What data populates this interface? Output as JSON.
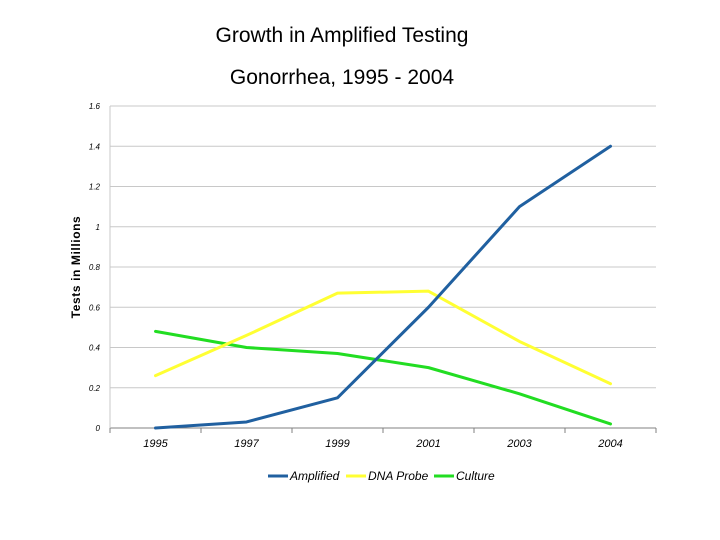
{
  "chart_data": {
    "type": "line",
    "title": "Growth in Amplified Testing",
    "subtitle": "Gonorrhea, 1995 - 2004",
    "ylabel": "Tests in Millions",
    "xlabel": "",
    "categories": [
      "1995",
      "1997",
      "1999",
      "2001",
      "2003",
      "2004"
    ],
    "y_ticks": [
      "0",
      "0.2",
      "0.4",
      "0.6",
      "0.8",
      "1",
      "1.2",
      "1.4",
      "1.6"
    ],
    "ylim": [
      0,
      1.6
    ],
    "grid": true,
    "legend_position": "bottom",
    "series": [
      {
        "name": "Amplified",
        "color": "#2060a0",
        "values": [
          0.0,
          0.03,
          0.15,
          0.6,
          1.1,
          1.4
        ]
      },
      {
        "name": "DNA Probe",
        "color": "#ffff33",
        "values": [
          0.26,
          0.46,
          0.67,
          0.68,
          0.43,
          0.22
        ]
      },
      {
        "name": "Culture",
        "color": "#22dd22",
        "values": [
          0.48,
          0.4,
          0.37,
          0.3,
          0.17,
          0.02
        ]
      }
    ]
  }
}
